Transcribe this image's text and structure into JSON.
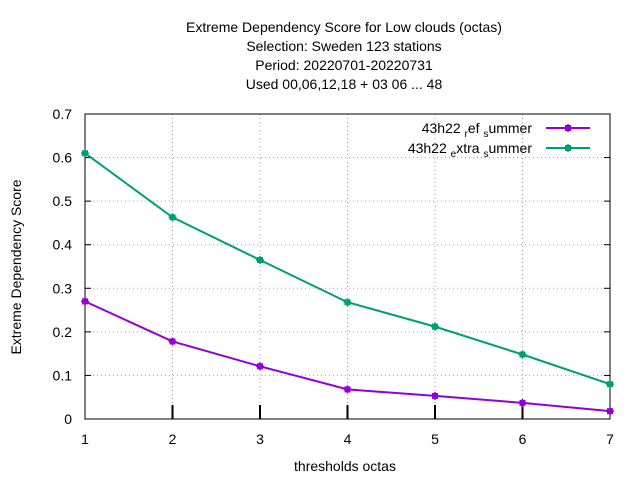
{
  "chart_data": {
    "type": "line",
    "title_lines": [
      "Extreme Dependency Score  for Low clouds (octas)",
      "Selection: Sweden    123 stations",
      "Period: 20220701-20220731",
      "Used  00,06,12,18  + 03 06 ... 48"
    ],
    "xlabel": "thresholds octas",
    "ylabel": "Extreme Dependency Score",
    "x": [
      1,
      2,
      3,
      4,
      5,
      6,
      7
    ],
    "xlim": [
      1,
      7
    ],
    "ylim": [
      0,
      0.7
    ],
    "xticks": [
      "1",
      "2",
      "3",
      "4",
      "5",
      "6",
      "7"
    ],
    "yticks": [
      "0",
      "0.1",
      "0.2",
      "0.3",
      "0.4",
      "0.5",
      "0.6",
      "0.7"
    ],
    "grid": true,
    "legend_position": "top-right",
    "series": [
      {
        "name": "43h22_ref_summer",
        "legend_parts": [
          "43h22 ",
          "r",
          "ef ",
          "s",
          "ummer"
        ],
        "color": "#9400d3",
        "values": [
          0.27,
          0.178,
          0.121,
          0.068,
          0.053,
          0.037,
          0.018
        ]
      },
      {
        "name": "43h22_extra_summer",
        "legend_parts": [
          "43h22 ",
          "e",
          "xtra ",
          "s",
          "ummer"
        ],
        "color": "#009e73",
        "values": [
          0.61,
          0.463,
          0.365,
          0.268,
          0.212,
          0.148,
          0.08
        ]
      }
    ]
  }
}
